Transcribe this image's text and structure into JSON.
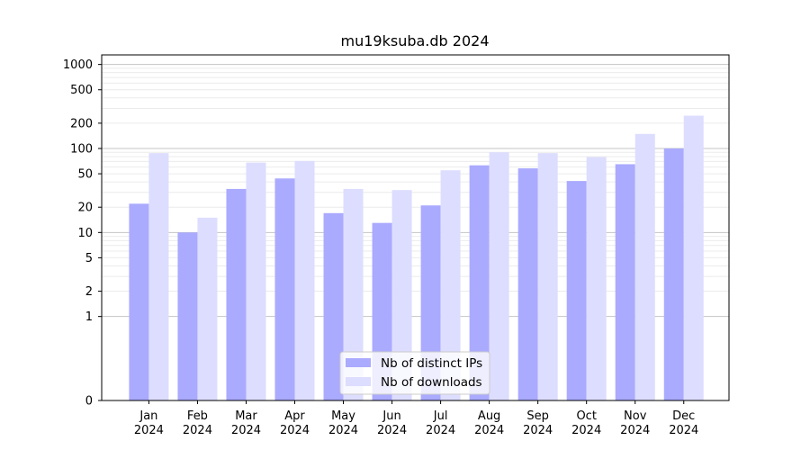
{
  "chart_data": {
    "type": "bar",
    "title": "mu19ksuba.db 2024",
    "xlabel": "",
    "ylabel": "",
    "yscale": "symlog",
    "ylim": [
      0,
      1300
    ],
    "categories": [
      [
        "Jan",
        "2024"
      ],
      [
        "Feb",
        "2024"
      ],
      [
        "Mar",
        "2024"
      ],
      [
        "Apr",
        "2024"
      ],
      [
        "May",
        "2024"
      ],
      [
        "Jun",
        "2024"
      ],
      [
        "Jul",
        "2024"
      ],
      [
        "Aug",
        "2024"
      ],
      [
        "Sep",
        "2024"
      ],
      [
        "Oct",
        "2024"
      ],
      [
        "Nov",
        "2024"
      ],
      [
        "Dec",
        "2024"
      ]
    ],
    "yticks": [
      "0",
      "1",
      "2",
      "5",
      "10",
      "20",
      "50",
      "100",
      "200",
      "500",
      "1000"
    ],
    "grid": true,
    "legend_position": "lower-center",
    "series": [
      {
        "name": "Nb of distinct IPs",
        "color": "#aaaaff",
        "values": [
          22,
          10,
          33,
          44,
          17,
          13,
          21,
          63,
          58,
          41,
          65,
          100
        ]
      },
      {
        "name": "Nb of downloads",
        "color": "#ddddff",
        "values": [
          88,
          15,
          68,
          71,
          33,
          32,
          55,
          90,
          88,
          79,
          149,
          246
        ]
      }
    ]
  }
}
